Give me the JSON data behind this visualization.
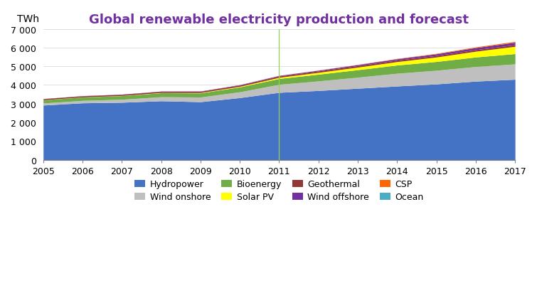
{
  "title": "Global renewable electricity production and forecast",
  "ylabel": "TWh",
  "years": [
    2005,
    2006,
    2007,
    2008,
    2009,
    2010,
    2011,
    2012,
    2013,
    2014,
    2015,
    2016,
    2017
  ],
  "series": {
    "Hydropower": [
      2920,
      3040,
      3070,
      3150,
      3100,
      3320,
      3600,
      3700,
      3820,
      3940,
      4050,
      4200,
      4300
    ],
    "Wind onshore": [
      110,
      130,
      160,
      215,
      250,
      310,
      430,
      510,
      590,
      680,
      730,
      780,
      820
    ],
    "Bioenergy": [
      170,
      180,
      195,
      215,
      220,
      260,
      310,
      360,
      400,
      440,
      470,
      510,
      550
    ],
    "Solar PV": [
      5,
      6,
      8,
      13,
      20,
      32,
      63,
      100,
      140,
      185,
      240,
      310,
      390
    ],
    "Geothermal": [
      55,
      58,
      60,
      63,
      65,
      68,
      70,
      73,
      76,
      78,
      80,
      83,
      85
    ],
    "Wind offshore": [
      6,
      8,
      10,
      12,
      15,
      20,
      30,
      40,
      55,
      70,
      90,
      110,
      130
    ],
    "CSP": [
      1,
      1,
      1,
      1,
      2,
      3,
      5,
      8,
      12,
      18,
      25,
      35,
      50
    ],
    "Ocean": [
      1,
      1,
      1,
      1,
      1,
      1,
      1,
      1,
      1,
      1,
      1,
      1,
      1
    ]
  },
  "colors": {
    "Hydropower": "#4472C4",
    "Wind onshore": "#BFBFBF",
    "Bioenergy": "#70AD47",
    "Solar PV": "#FFFF00",
    "Geothermal": "#943634",
    "Wind offshore": "#7030A0",
    "CSP": "#FF6600",
    "Ocean": "#4BACC6"
  },
  "series_order": [
    "Hydropower",
    "Wind onshore",
    "Bioenergy",
    "Solar PV",
    "Geothermal",
    "Wind offshore",
    "CSP",
    "Ocean"
  ],
  "legend_row1": [
    "Hydropower",
    "Wind onshore",
    "Bioenergy",
    "Solar PV"
  ],
  "legend_row2": [
    "Geothermal",
    "Wind offshore",
    "CSP",
    "Ocean"
  ],
  "ylim": [
    0,
    7000
  ],
  "yticks": [
    0,
    1000,
    2000,
    3000,
    4000,
    5000,
    6000,
    7000
  ],
  "vline_x": 2011,
  "vline_color": "#92D050",
  "background_color": "#FFFFFF",
  "title_color": "#7030A0",
  "title_fontsize": 13,
  "axis_fontsize": 9,
  "legend_fontsize": 9
}
